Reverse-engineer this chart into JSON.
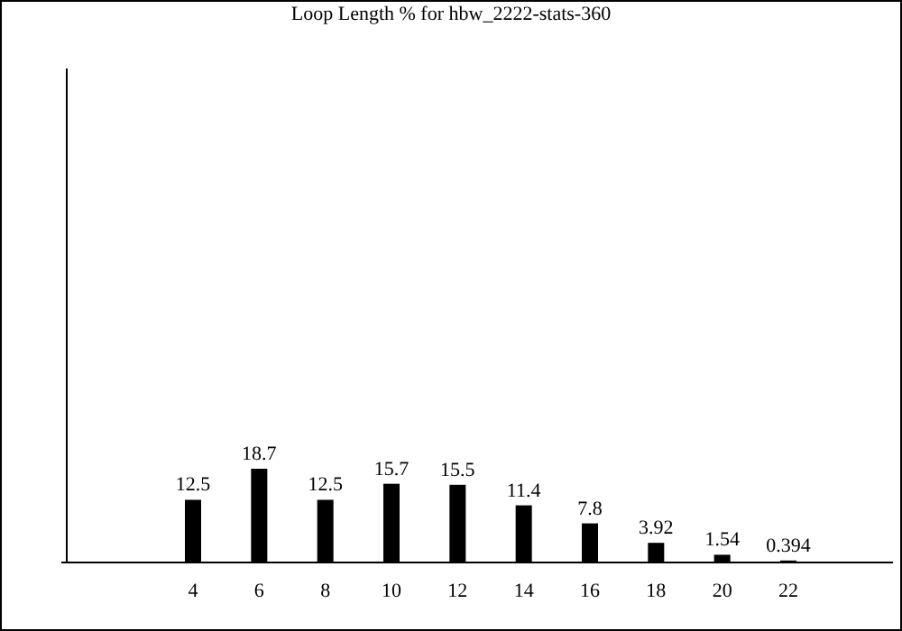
{
  "chart_data": {
    "type": "bar",
    "title": "Loop Length % for hbw_2222-stats-360",
    "categories": [
      "4",
      "6",
      "8",
      "10",
      "12",
      "14",
      "16",
      "18",
      "20",
      "22"
    ],
    "values": [
      12.5,
      18.7,
      12.5,
      15.7,
      15.5,
      11.4,
      7.8,
      3.92,
      1.54,
      0.394
    ],
    "color": "#000000",
    "tick_labels": "x",
    "data_labels": true
  }
}
